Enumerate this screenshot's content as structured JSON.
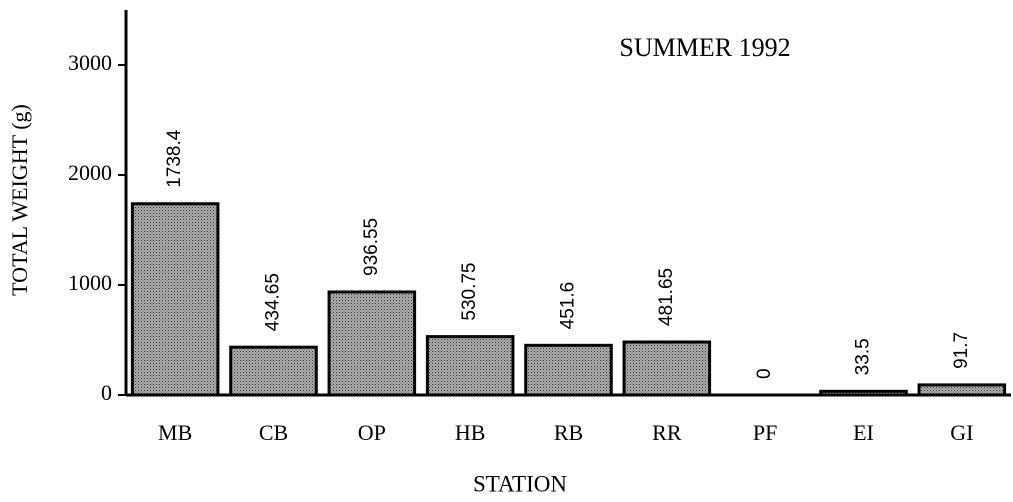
{
  "chart_data": {
    "type": "bar",
    "title": "SUMMER 1992",
    "x_label": "STATION",
    "y_label": "TOTAL WEIGHT (g)",
    "categories": [
      "MB",
      "CB",
      "OP",
      "HB",
      "RB",
      "RR",
      "PF",
      "EI",
      "GI"
    ],
    "values": [
      1738.4,
      434.65,
      936.55,
      530.75,
      451.6,
      481.65,
      0,
      33.5,
      91.7
    ],
    "color": "#8c8c8c",
    "ylim": [
      0,
      3500
    ],
    "yticks": [
      0,
      1000,
      2000,
      3000
    ],
    "grid": false
  }
}
